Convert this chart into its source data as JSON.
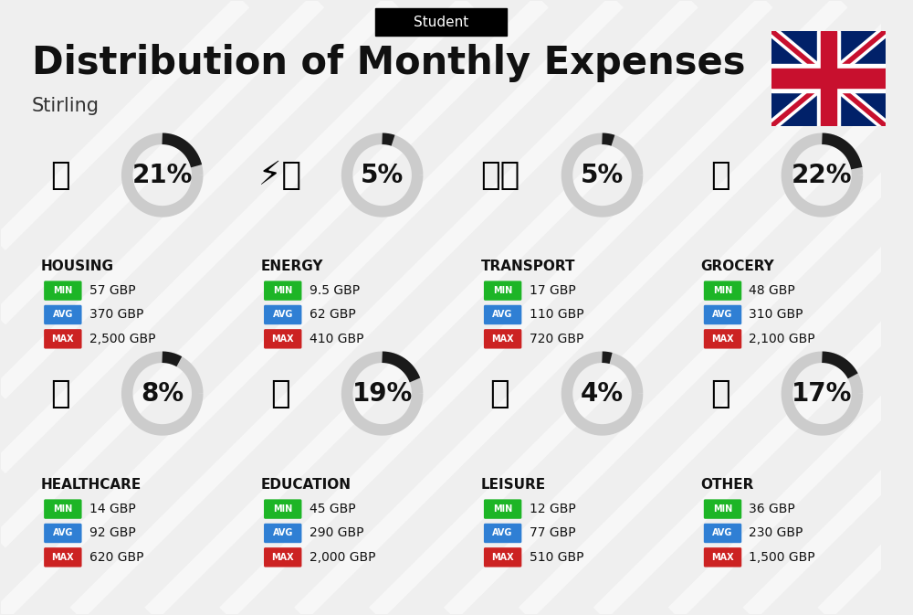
{
  "title": "Distribution of Monthly Expenses",
  "subtitle": "Stirling",
  "header_label": "Student",
  "bg_color": "#efefef",
  "categories": [
    {
      "name": "HOUSING",
      "pct": 21,
      "col": 0,
      "row": 0,
      "min_val": "57 GBP",
      "avg_val": "370 GBP",
      "max_val": "2,500 GBP"
    },
    {
      "name": "ENERGY",
      "pct": 5,
      "col": 1,
      "row": 0,
      "min_val": "9.5 GBP",
      "avg_val": "62 GBP",
      "max_val": "410 GBP"
    },
    {
      "name": "TRANSPORT",
      "pct": 5,
      "col": 2,
      "row": 0,
      "min_val": "17 GBP",
      "avg_val": "110 GBP",
      "max_val": "720 GBP"
    },
    {
      "name": "GROCERY",
      "pct": 22,
      "col": 3,
      "row": 0,
      "min_val": "48 GBP",
      "avg_val": "310 GBP",
      "max_val": "2,100 GBP"
    },
    {
      "name": "HEALTHCARE",
      "pct": 8,
      "col": 0,
      "row": 1,
      "min_val": "14 GBP",
      "avg_val": "92 GBP",
      "max_val": "620 GBP"
    },
    {
      "name": "EDUCATION",
      "pct": 19,
      "col": 1,
      "row": 1,
      "min_val": "45 GBP",
      "avg_val": "290 GBP",
      "max_val": "2,000 GBP"
    },
    {
      "name": "LEISURE",
      "pct": 4,
      "col": 2,
      "row": 1,
      "min_val": "12 GBP",
      "avg_val": "77 GBP",
      "max_val": "510 GBP"
    },
    {
      "name": "OTHER",
      "pct": 17,
      "col": 3,
      "row": 1,
      "min_val": "36 GBP",
      "avg_val": "230 GBP",
      "max_val": "1,500 GBP"
    }
  ],
  "min_color": "#1db526",
  "avg_color": "#2f7fd4",
  "max_color": "#cc2222",
  "arc_color_filled": "#1a1a1a",
  "arc_color_empty": "#cccccc",
  "title_fontsize": 30,
  "subtitle_fontsize": 15,
  "pct_fontsize": 20,
  "cat_fontsize": 11,
  "val_fontsize": 10,
  "badge_fontsize": 7
}
